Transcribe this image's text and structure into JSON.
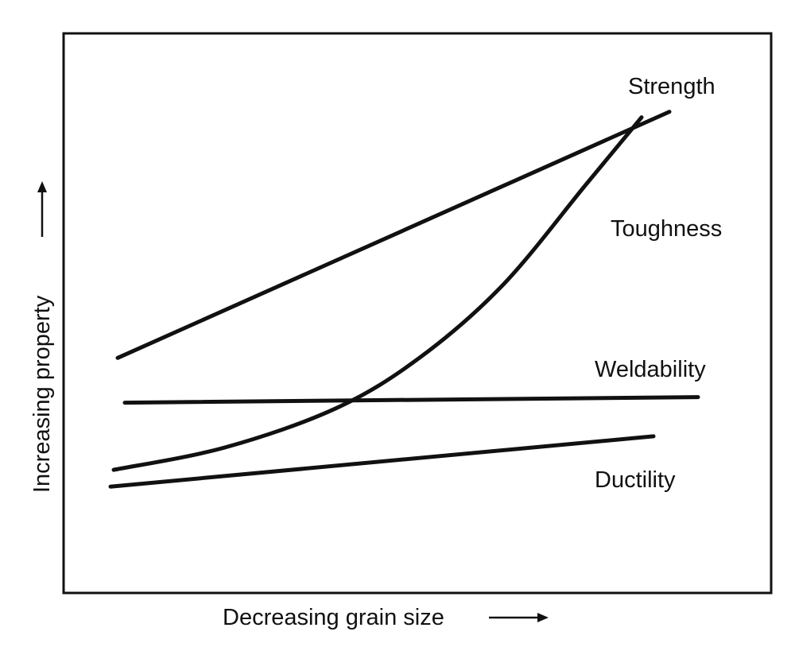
{
  "chart_data": {
    "type": "line",
    "title": "",
    "xlabel": "Decreasing grain size",
    "ylabel": "Increasing property",
    "xlim": [
      0,
      1
    ],
    "ylim": [
      0,
      1
    ],
    "grid": false,
    "series": [
      {
        "name": "Strength",
        "x": [
          0,
          1
        ],
        "y": [
          0.42,
          0.86
        ]
      },
      {
        "name": "Toughness",
        "x": [
          0,
          0.2,
          0.4,
          0.55,
          0.7,
          0.85,
          0.95
        ],
        "y": [
          0.22,
          0.26,
          0.33,
          0.42,
          0.55,
          0.73,
          0.85
        ]
      },
      {
        "name": "Weldability",
        "x": [
          0,
          1
        ],
        "y": [
          0.34,
          0.35
        ]
      },
      {
        "name": "Ductility",
        "x": [
          0,
          1
        ],
        "y": [
          0.19,
          0.28
        ]
      }
    ]
  }
}
